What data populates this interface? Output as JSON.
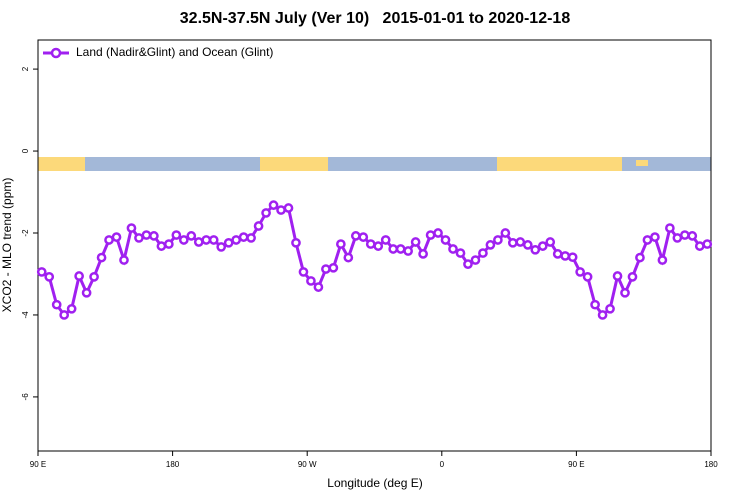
{
  "chart_data": {
    "type": "line",
    "title": "32.5N-37.5N July (Ver 10)   2015-01-01 to 2020-12-18",
    "x_label": "Longitude (deg E)",
    "y_label": "XCO2 - MLO trend (ppm)",
    "x": [
      92.5,
      97.5,
      102.5,
      107.5,
      112.5,
      117.5,
      122.5,
      127.5,
      132.5,
      137.5,
      142.5,
      147.5,
      152.5,
      157.5,
      162.5,
      167.5,
      172.5,
      177.5,
      182.5,
      187.5,
      192.5,
      197.5,
      202.5,
      207.5,
      212.5,
      217.5,
      222.5,
      227.5,
      232.5,
      237.5,
      242.5,
      247.5,
      252.5,
      257.5,
      262.5,
      267.5,
      272.5,
      277.5,
      282.5,
      287.5,
      292.5,
      297.5,
      302.5,
      307.5,
      312.5,
      317.5,
      322.5,
      327.5,
      332.5,
      337.5,
      342.5,
      347.5,
      352.5,
      357.5,
      362.5,
      367.5,
      372.5,
      377.5,
      382.5,
      387.5,
      392.5,
      397.5,
      402.5,
      407.5,
      412.5,
      417.5,
      422.5,
      427.5,
      432.5,
      437.5,
      442.5,
      447.5,
      452.5,
      457.5,
      462.5,
      467.5,
      472.5,
      477.5,
      482.5,
      487.5,
      492.5,
      497.5,
      502.5,
      507.5,
      512.5,
      517.5,
      522.5,
      527.5,
      532.5,
      537.5
    ],
    "series": [
      {
        "name": "Land (Nadir&Glint) and Ocean (Glint)",
        "color": "#a020f0",
        "values": [
          -2.95,
          -3.07,
          -3.75,
          -4.0,
          -3.85,
          -3.05,
          -3.46,
          -3.07,
          -2.6,
          -2.17,
          -2.1,
          -2.66,
          -1.88,
          -2.12,
          -2.05,
          -2.07,
          -2.32,
          -2.27,
          -2.05,
          -2.17,
          -2.07,
          -2.22,
          -2.17,
          -2.17,
          -2.34,
          -2.24,
          -2.17,
          -2.1,
          -2.12,
          -1.83,
          -1.51,
          -1.32,
          -1.44,
          -1.39,
          -2.24,
          -2.95,
          -3.17,
          -3.32,
          -2.88,
          -2.85,
          -2.27,
          -2.6,
          -2.07,
          -2.1,
          -2.27,
          -2.32,
          -2.17,
          -2.39,
          -2.39,
          -2.44,
          -2.22,
          -2.51,
          -2.05,
          -2.0,
          -2.17,
          -2.39,
          -2.49,
          -2.76,
          -2.66,
          -2.49,
          -2.29,
          -2.17,
          -2.0,
          -2.24,
          -2.22,
          -2.29,
          -2.41,
          -2.32,
          -2.22,
          -2.51,
          -2.56,
          -2.59,
          -2.95,
          -3.07,
          -3.75,
          -4.0,
          -3.85,
          -3.05,
          -3.46,
          -3.07,
          -2.6,
          -2.17,
          -2.1,
          -2.66,
          -1.88,
          -2.12,
          -2.05,
          -2.07,
          -2.32,
          -2.27
        ]
      }
    ],
    "xlim": [
      90,
      540
    ],
    "xticks": [
      {
        "value": 90,
        "label": "90 E"
      },
      180,
      {
        "value": 270,
        "label": "90 W"
      },
      {
        "value": 360,
        "label": "0"
      },
      {
        "value": 450,
        "label": "90 E"
      },
      {
        "value": 540,
        "label": "180"
      }
    ],
    "ylim": [
      -7.32,
      2.71
    ],
    "yticks": [
      -6,
      -4,
      -2,
      0,
      2
    ],
    "legend": "top-left"
  }
}
